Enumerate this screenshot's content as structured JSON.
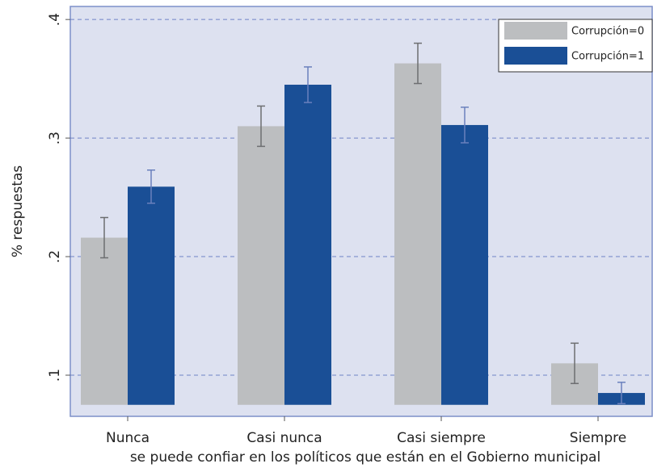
{
  "chart_data": {
    "type": "bar",
    "x_label": "se puede confiar en los políticos que están en el Gobierno municipal",
    "y_label": "% respuestas",
    "categories": [
      "Nunca",
      "Casi nunca",
      "Casi siempre",
      "Siempre"
    ],
    "series": [
      {
        "name": "Corrupción=0",
        "color": "#bcbec0",
        "error_color": "#6d6e71",
        "values": [
          0.216,
          0.31,
          0.363,
          0.11
        ],
        "errors": [
          0.017,
          0.017,
          0.017,
          0.017
        ]
      },
      {
        "name": "Corrupción=1",
        "color": "#1a4f96",
        "error_color": "#6a80bd",
        "values": [
          0.259,
          0.345,
          0.311,
          0.085
        ],
        "errors": [
          0.014,
          0.015,
          0.015,
          0.009
        ]
      }
    ],
    "bar_base": 0.075,
    "ylim": [
      0.0653,
      0.411
    ],
    "yticks": [
      {
        "value": 0.1,
        "label": ".1"
      },
      {
        "value": 0.2,
        "label": ".2"
      },
      {
        "value": 0.3,
        "label": ".3"
      },
      {
        "value": 0.4,
        "label": ".4"
      }
    ],
    "grid": true,
    "legend_position": "top-right"
  }
}
